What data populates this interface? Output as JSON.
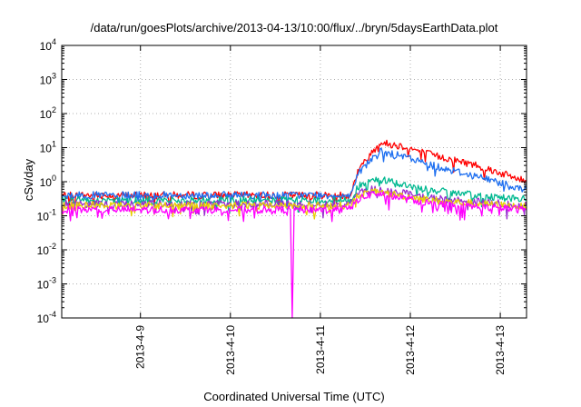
{
  "chart_data": {
    "type": "line",
    "title": "/data/run/goesPlots/archive/2013-04-13/10:00/flux/../bryn/5daysEarthData.plot",
    "xlabel": "Coordinated Universal Time (UTC)",
    "ylabel": "cSv/day",
    "yscale": "log",
    "ylim": [
      0.0001,
      10000
    ],
    "xlim": [
      "2013-04-08T03:00",
      "2013-04-13T07:00"
    ],
    "x_ticks": [
      "2013-4-9",
      "2013-4-10",
      "2013-4-11",
      "2013-4-12",
      "2013-4-13"
    ],
    "y_ticks": [
      {
        "base": "10",
        "exp": "-4"
      },
      {
        "base": "10",
        "exp": "-3"
      },
      {
        "base": "10",
        "exp": "-2"
      },
      {
        "base": "10",
        "exp": "-1"
      },
      {
        "base": "10",
        "exp": "0"
      },
      {
        "base": "10",
        "exp": "1"
      },
      {
        "base": "10",
        "exp": "2"
      },
      {
        "base": "10",
        "exp": "3"
      },
      {
        "base": "10",
        "exp": "4"
      }
    ],
    "grid": true,
    "legend": "none",
    "series": [
      {
        "color": "#ff0000",
        "values": [
          [
            "2013-04-08T03:00",
            0.4
          ],
          [
            "2013-04-11T08:00",
            0.4
          ],
          [
            "2013-04-11T10:00",
            2.0
          ],
          [
            "2013-04-11T14:00",
            8.0
          ],
          [
            "2013-04-11T16:00",
            14.0
          ],
          [
            "2013-04-11T22:00",
            11.0
          ],
          [
            "2013-04-12T06:00",
            6.0
          ],
          [
            "2013-04-12T18:00",
            3.0
          ],
          [
            "2013-04-13T07:00",
            1.0
          ]
        ]
      },
      {
        "color": "#1e6ff0",
        "values": [
          [
            "2013-04-08T03:00",
            0.4
          ],
          [
            "2013-04-11T08:00",
            0.4
          ],
          [
            "2013-04-11T10:00",
            1.8
          ],
          [
            "2013-04-11T14:00",
            5.0
          ],
          [
            "2013-04-11T16:00",
            7.5
          ],
          [
            "2013-04-11T22:00",
            5.5
          ],
          [
            "2013-04-12T06:00",
            3.0
          ],
          [
            "2013-04-12T18:00",
            1.4
          ],
          [
            "2013-04-13T07:00",
            0.6
          ]
        ]
      },
      {
        "color": "#00b890",
        "values": [
          [
            "2013-04-08T03:00",
            0.28
          ],
          [
            "2013-04-11T08:00",
            0.28
          ],
          [
            "2013-04-11T10:00",
            0.7
          ],
          [
            "2013-04-11T14:00",
            1.1
          ],
          [
            "2013-04-11T18:00",
            1.1
          ],
          [
            "2013-04-12T00:00",
            0.7
          ],
          [
            "2013-04-12T12:00",
            0.45
          ],
          [
            "2013-04-13T07:00",
            0.3
          ]
        ]
      },
      {
        "color": "#9a2ad0",
        "values": [
          [
            "2013-04-08T03:00",
            0.22
          ],
          [
            "2013-04-11T08:00",
            0.22
          ],
          [
            "2013-04-11T10:00",
            0.45
          ],
          [
            "2013-04-11T14:00",
            0.6
          ],
          [
            "2013-04-11T18:00",
            0.55
          ],
          [
            "2013-04-12T06:00",
            0.32
          ],
          [
            "2013-04-13T07:00",
            0.2
          ]
        ]
      },
      {
        "color": "#e8d000",
        "values": [
          [
            "2013-04-08T03:00",
            0.2
          ],
          [
            "2013-04-11T08:00",
            0.2
          ],
          [
            "2013-04-11T10:00",
            0.4
          ],
          [
            "2013-04-11T14:00",
            0.5
          ],
          [
            "2013-04-11T18:00",
            0.45
          ],
          [
            "2013-04-12T06:00",
            0.28
          ],
          [
            "2013-04-13T07:00",
            0.18
          ]
        ]
      },
      {
        "color": "#ff00ff",
        "values": [
          [
            "2013-04-08T03:00",
            0.15
          ],
          [
            "2013-04-10T16:00",
            0.15
          ],
          [
            "2013-04-10T16:30",
            0.0001
          ],
          [
            "2013-04-10T17:00",
            0.15
          ],
          [
            "2013-04-11T08:00",
            0.16
          ],
          [
            "2013-04-11T10:00",
            0.3
          ],
          [
            "2013-04-11T14:00",
            0.45
          ],
          [
            "2013-04-11T18:00",
            0.4
          ],
          [
            "2013-04-12T06:00",
            0.22
          ],
          [
            "2013-04-13T07:00",
            0.15
          ]
        ]
      }
    ]
  }
}
